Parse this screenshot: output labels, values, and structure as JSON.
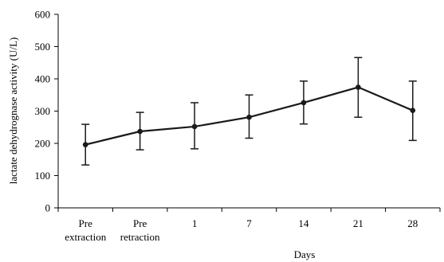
{
  "chart_data": {
    "type": "line",
    "title": "",
    "xlabel": "Days",
    "ylabel": "lactate dehydrognase activity (U/L)",
    "categories": [
      [
        "Pre",
        "extraction"
      ],
      [
        "Pre",
        "retraction"
      ],
      [
        "1"
      ],
      [
        "7"
      ],
      [
        "14"
      ],
      [
        "21"
      ],
      [
        "28"
      ]
    ],
    "yticks": [
      "0",
      "100",
      "200",
      "300",
      "400",
      "500",
      "600"
    ],
    "ylim": [
      0,
      600
    ],
    "grid": false,
    "legend": "none",
    "line_color": "#1a1a1a",
    "series": [
      {
        "values": [
          196,
          237,
          252,
          281,
          326,
          374,
          302
        ],
        "error_low": [
          133,
          180,
          183,
          216,
          260,
          281,
          209
        ],
        "error_high": [
          259,
          296,
          326,
          350,
          393,
          466,
          393
        ]
      }
    ]
  }
}
